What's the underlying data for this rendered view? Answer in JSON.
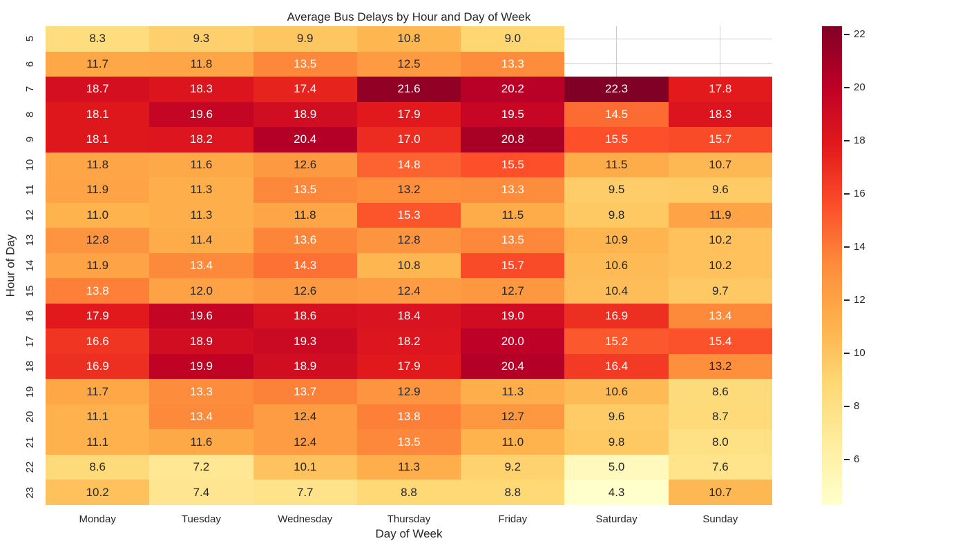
{
  "chart_data": {
    "type": "heatmap",
    "title": "Average Bus Delays by Hour and Day of Week",
    "xlabel": "Day of Week",
    "ylabel": "Hour of Day",
    "columns": [
      "Monday",
      "Tuesday",
      "Wednesday",
      "Thursday",
      "Friday",
      "Saturday",
      "Sunday"
    ],
    "rows": [
      "5",
      "6",
      "7",
      "8",
      "9",
      "10",
      "11",
      "12",
      "13",
      "14",
      "15",
      "16",
      "17",
      "18",
      "19",
      "20",
      "21",
      "22",
      "23"
    ],
    "values": [
      [
        8.3,
        9.3,
        9.9,
        10.8,
        9.0,
        null,
        null
      ],
      [
        11.7,
        11.8,
        13.5,
        12.5,
        13.3,
        null,
        null
      ],
      [
        18.7,
        18.3,
        17.4,
        21.6,
        20.2,
        22.3,
        17.8
      ],
      [
        18.1,
        19.6,
        18.9,
        17.9,
        19.5,
        14.5,
        18.3
      ],
      [
        18.1,
        18.2,
        20.4,
        17.0,
        20.8,
        15.5,
        15.7
      ],
      [
        11.8,
        11.6,
        12.6,
        14.8,
        15.5,
        11.5,
        10.7
      ],
      [
        11.9,
        11.3,
        13.5,
        13.2,
        13.3,
        9.5,
        9.6
      ],
      [
        11.0,
        11.3,
        11.8,
        15.3,
        11.5,
        9.8,
        11.9
      ],
      [
        12.8,
        11.4,
        13.6,
        12.8,
        13.5,
        10.9,
        10.2
      ],
      [
        11.9,
        13.4,
        14.3,
        10.8,
        15.7,
        10.6,
        10.2
      ],
      [
        13.8,
        12.0,
        12.6,
        12.4,
        12.7,
        10.4,
        9.7
      ],
      [
        17.9,
        19.6,
        18.6,
        18.4,
        19.0,
        16.9,
        13.4
      ],
      [
        16.6,
        18.9,
        19.3,
        18.2,
        20.0,
        15.2,
        15.4
      ],
      [
        16.9,
        19.9,
        18.9,
        17.9,
        20.4,
        16.4,
        13.2
      ],
      [
        11.7,
        13.3,
        13.7,
        12.9,
        11.3,
        10.6,
        8.6
      ],
      [
        11.1,
        13.4,
        12.4,
        13.8,
        12.7,
        9.6,
        8.7
      ],
      [
        11.1,
        11.6,
        12.4,
        13.5,
        11.0,
        9.8,
        8.0
      ],
      [
        8.6,
        7.2,
        10.1,
        11.3,
        9.2,
        5.0,
        7.6
      ],
      [
        10.2,
        7.4,
        7.7,
        8.8,
        8.8,
        4.3,
        10.7
      ]
    ],
    "vmin": 4.3,
    "vmax": 22.3,
    "colormap": "YlOrRd",
    "colormap_stops": [
      "#ffffcc",
      "#ffeda0",
      "#fed976",
      "#feb24c",
      "#fd8d3c",
      "#fc4e2a",
      "#e31a1c",
      "#bd0026",
      "#800026"
    ],
    "colorbar_ticks": [
      6,
      8,
      10,
      12,
      14,
      16,
      18,
      20,
      22
    ],
    "annotation_decimals": 1,
    "grid_on": true,
    "grid_color": "#cccccc",
    "annotation_dark_color": "#262626",
    "annotation_light_color": "#ffffff",
    "legend_position": "colorbar-right"
  }
}
